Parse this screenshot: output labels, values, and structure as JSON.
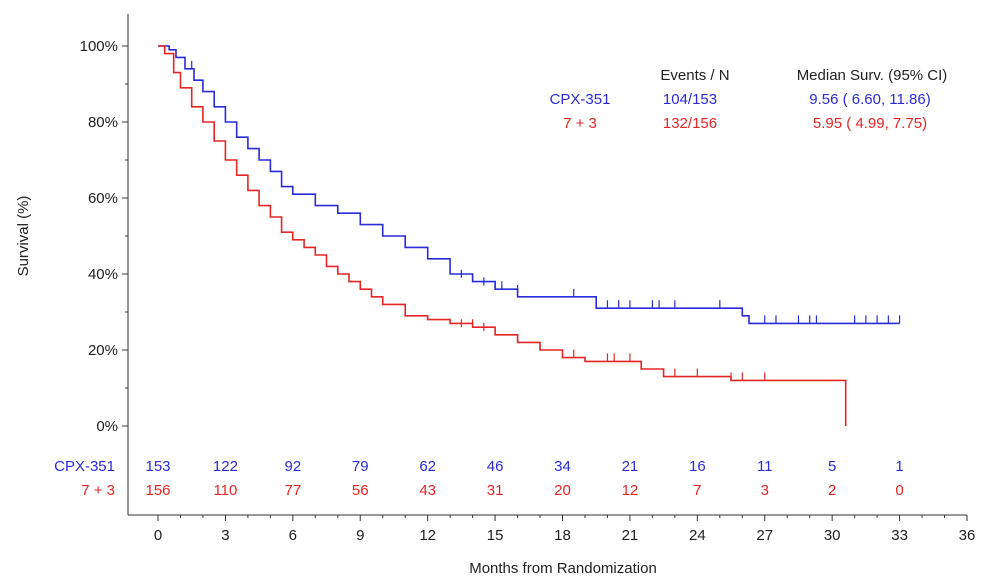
{
  "chart_data": {
    "type": "line",
    "xlabel": "Months from Randomization",
    "ylabel": "Survival (%)",
    "xlim": [
      0,
      36
    ],
    "ylim": [
      0,
      100
    ],
    "x_ticks": [
      0,
      3,
      6,
      9,
      12,
      15,
      18,
      21,
      24,
      27,
      30,
      33,
      36
    ],
    "x_tick_labels": [
      "0",
      "3",
      "6",
      "9",
      "12",
      "15",
      "18",
      "21",
      "24",
      "27",
      "30",
      "33",
      "36"
    ],
    "y_ticks": [
      0,
      20,
      40,
      60,
      80,
      100
    ],
    "y_tick_labels": [
      "0%",
      "20%",
      "40%",
      "60%",
      "80%",
      "100%"
    ],
    "grid": false,
    "legend_position": "top-right",
    "legend_headers": {
      "events": "Events / N",
      "median": "Median Surv. (95% CI)"
    },
    "series": [
      {
        "name": "CPX-351",
        "color": "#2b2bd9",
        "events_n": "104/153",
        "median": "9.56 ( 6.60, 11.86)",
        "points": [
          [
            0,
            100
          ],
          [
            0.5,
            99
          ],
          [
            0.8,
            97
          ],
          [
            1.2,
            94
          ],
          [
            1.6,
            91
          ],
          [
            2.0,
            88
          ],
          [
            2.5,
            84
          ],
          [
            3.0,
            80
          ],
          [
            3.5,
            76
          ],
          [
            4.0,
            73
          ],
          [
            4.5,
            70
          ],
          [
            5.0,
            67
          ],
          [
            5.5,
            63
          ],
          [
            6.0,
            61
          ],
          [
            7.0,
            58
          ],
          [
            8.0,
            56
          ],
          [
            9.0,
            53
          ],
          [
            10.0,
            50
          ],
          [
            11.0,
            47
          ],
          [
            12.0,
            44
          ],
          [
            13.0,
            40
          ],
          [
            14.0,
            38
          ],
          [
            15.0,
            36
          ],
          [
            16.0,
            34
          ],
          [
            17.0,
            34
          ],
          [
            18.0,
            34
          ],
          [
            19.5,
            31
          ],
          [
            22.0,
            31
          ],
          [
            25.0,
            31
          ],
          [
            26.0,
            29
          ],
          [
            26.3,
            27
          ],
          [
            30.0,
            27
          ],
          [
            33.0,
            27
          ]
        ],
        "censors": [
          [
            1.5,
            94
          ],
          [
            13.5,
            39
          ],
          [
            14.0,
            38
          ],
          [
            14.5,
            37
          ],
          [
            15.0,
            36
          ],
          [
            15.3,
            36
          ],
          [
            16.0,
            35
          ],
          [
            18.5,
            34
          ],
          [
            19.5,
            31
          ],
          [
            20.0,
            31
          ],
          [
            20.5,
            31
          ],
          [
            21.0,
            31
          ],
          [
            22.0,
            31
          ],
          [
            22.3,
            31
          ],
          [
            23.0,
            31
          ],
          [
            25.0,
            31
          ],
          [
            26.0,
            29
          ],
          [
            27.0,
            27
          ],
          [
            27.5,
            27
          ],
          [
            28.5,
            27
          ],
          [
            29.0,
            27
          ],
          [
            29.3,
            27
          ],
          [
            31.0,
            27
          ],
          [
            31.5,
            27
          ],
          [
            32.0,
            27
          ],
          [
            32.5,
            27
          ],
          [
            33.0,
            27
          ]
        ],
        "at_risk": [
          153,
          122,
          92,
          79,
          62,
          46,
          34,
          21,
          16,
          11,
          5,
          1
        ]
      },
      {
        "name": "7 + 3",
        "color": "#e52626",
        "events_n": "132/156",
        "median": "5.95 ( 4.99,  7.75)",
        "points": [
          [
            0,
            100
          ],
          [
            0.3,
            98
          ],
          [
            0.7,
            93
          ],
          [
            1.0,
            89
          ],
          [
            1.5,
            84
          ],
          [
            2.0,
            80
          ],
          [
            2.5,
            75
          ],
          [
            3.0,
            70
          ],
          [
            3.5,
            66
          ],
          [
            4.0,
            62
          ],
          [
            4.5,
            58
          ],
          [
            5.0,
            55
          ],
          [
            5.5,
            51
          ],
          [
            6.0,
            49
          ],
          [
            6.5,
            47
          ],
          [
            7.0,
            45
          ],
          [
            7.5,
            42
          ],
          [
            8.0,
            40
          ],
          [
            8.5,
            38
          ],
          [
            9.0,
            36
          ],
          [
            9.5,
            34
          ],
          [
            10.0,
            32
          ],
          [
            11.0,
            29
          ],
          [
            12.0,
            28
          ],
          [
            13.0,
            27
          ],
          [
            14.0,
            26
          ],
          [
            15.0,
            24
          ],
          [
            16.0,
            22
          ],
          [
            17.0,
            20
          ],
          [
            18.0,
            18
          ],
          [
            19.0,
            17
          ],
          [
            20.0,
            17
          ],
          [
            21.0,
            17
          ],
          [
            21.5,
            15
          ],
          [
            22.5,
            13
          ],
          [
            25.0,
            13
          ],
          [
            25.5,
            12
          ],
          [
            30.0,
            12
          ],
          [
            30.6,
            12
          ],
          [
            30.6,
            0
          ]
        ],
        "censors": [
          [
            13.5,
            26
          ],
          [
            14.0,
            26
          ],
          [
            14.5,
            25
          ],
          [
            15.0,
            24
          ],
          [
            16.0,
            22
          ],
          [
            17.0,
            20
          ],
          [
            18.5,
            18
          ],
          [
            20.0,
            17
          ],
          [
            20.3,
            17
          ],
          [
            21.0,
            17
          ],
          [
            21.5,
            15
          ],
          [
            23.0,
            13
          ],
          [
            24.0,
            13
          ],
          [
            25.5,
            12
          ],
          [
            26.0,
            12
          ],
          [
            27.0,
            12
          ]
        ],
        "at_risk": [
          156,
          110,
          77,
          56,
          43,
          31,
          20,
          12,
          7,
          3,
          2,
          0
        ]
      }
    ],
    "risk_table": {
      "x": [
        0,
        3,
        6,
        9,
        12,
        15,
        18,
        21,
        24,
        27,
        30,
        33
      ],
      "rows": [
        {
          "label": "CPX-351",
          "values": [
            153,
            122,
            92,
            79,
            62,
            46,
            34,
            21,
            16,
            11,
            5,
            1
          ]
        },
        {
          "label": "7 + 3",
          "values": [
            156,
            110,
            77,
            56,
            43,
            31,
            20,
            12,
            7,
            3,
            2,
            0
          ]
        }
      ]
    }
  }
}
